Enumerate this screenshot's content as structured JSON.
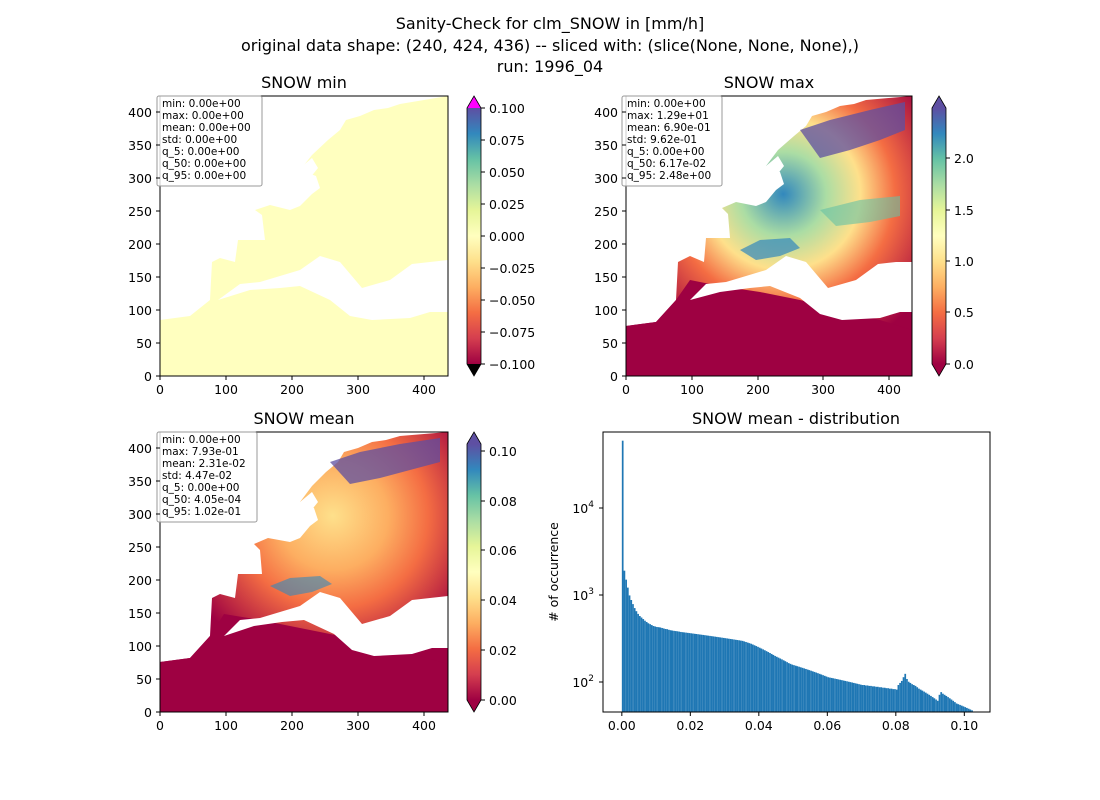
{
  "figure": {
    "title_lines": [
      "Sanity-Check for clm_SNOW in [mm/h]",
      "original data shape: (240, 424, 436) -- sliced with: (slice(None, None, None),)",
      "run: 1996_04"
    ]
  },
  "colors": {
    "land_yellow": "#ffffbf",
    "ocean_red": "#9e0142",
    "over_max": "#ff00ff",
    "under_min": "#000000",
    "hist_bar": "#1f77b4",
    "spectral_r": [
      "#9e0142",
      "#d53e4f",
      "#f46d43",
      "#fdae61",
      "#fee08b",
      "#ffffbf",
      "#e6f598",
      "#abdda4",
      "#66c2a5",
      "#3288bd",
      "#5e4fa2"
    ]
  },
  "chart_data": [
    {
      "type": "heatmap",
      "title": "SNOW min",
      "xlim": [
        0,
        436
      ],
      "ylim": [
        0,
        424
      ],
      "x_ticks": [
        "0",
        "100",
        "200",
        "300",
        "400"
      ],
      "y_ticks": [
        "0",
        "50",
        "100",
        "150",
        "200",
        "250",
        "300",
        "350",
        "400"
      ],
      "colorbar": {
        "vmin": -0.1,
        "vmax": 0.1,
        "ticks": [
          "0.100",
          "0.075",
          "0.050",
          "0.025",
          "0.000",
          "−0.025",
          "−0.050",
          "−0.075",
          "−0.100"
        ],
        "extend": "both"
      },
      "stats": [
        "min: 0.00e+00",
        "max: 0.00e+00",
        "mean: 0.00e+00",
        "std: 0.00e+00",
        "q_5: 0.00e+00",
        "q_50: 0.00e+00",
        "q_95: 0.00e+00"
      ]
    },
    {
      "type": "heatmap",
      "title": "SNOW max",
      "xlim": [
        0,
        436
      ],
      "ylim": [
        0,
        424
      ],
      "x_ticks": [
        "0",
        "100",
        "200",
        "300",
        "400"
      ],
      "y_ticks": [
        "0",
        "50",
        "100",
        "150",
        "200",
        "250",
        "300",
        "350",
        "400"
      ],
      "colorbar": {
        "vmin": 0,
        "vmax": 2.48,
        "ticks": [
          "2.0",
          "1.5",
          "1.0",
          "0.5",
          "0.0"
        ],
        "extend": "both"
      },
      "stats": [
        "min: 0.00e+00",
        "max: 1.29e+01",
        "mean: 6.90e-01",
        "std: 9.62e-01",
        "q_5: 0.00e+00",
        "q_50: 6.17e-02",
        "q_95: 2.48e+00"
      ]
    },
    {
      "type": "heatmap",
      "title": "SNOW mean",
      "xlim": [
        0,
        436
      ],
      "ylim": [
        0,
        424
      ],
      "x_ticks": [
        "0",
        "100",
        "200",
        "300",
        "400"
      ],
      "y_ticks": [
        "0",
        "50",
        "100",
        "150",
        "200",
        "250",
        "300",
        "350",
        "400"
      ],
      "colorbar": {
        "vmin": 0,
        "vmax": 0.102,
        "ticks": [
          "0.10",
          "0.08",
          "0.06",
          "0.04",
          "0.02",
          "0.00"
        ],
        "extend": "both"
      },
      "stats": [
        "min: 0.00e+00",
        "max: 7.93e-01",
        "mean: 2.31e-02",
        "std: 4.47e-02",
        "q_5: 0.00e+00",
        "q_50: 4.05e-04",
        "q_95: 1.02e-01"
      ]
    },
    {
      "type": "bar",
      "title": "SNOW mean - distribution",
      "ylabel": "# of occurrence",
      "yscale": "log",
      "xlim": [
        -0.0055,
        0.1075
      ],
      "ylim": [
        45,
        60000
      ],
      "x_ticks": [
        "0.00",
        "0.02",
        "0.04",
        "0.06",
        "0.08",
        "0.10"
      ],
      "y_ticks": [
        "10",
        "10",
        "10"
      ],
      "y_tick_exps": [
        "4",
        "3",
        "2"
      ],
      "bins": {
        "start": 0.0,
        "width": 0.0005
      },
      "values": [
        48000,
        1700,
        1350,
        1100,
        900,
        800,
        720,
        650,
        600,
        560,
        530,
        510,
        490,
        470,
        455,
        440,
        430,
        420,
        410,
        405,
        400,
        398,
        395,
        390,
        385,
        380,
        378,
        372,
        368,
        365,
        362,
        360,
        358,
        355,
        352,
        350,
        348,
        346,
        344,
        342,
        340,
        338,
        336,
        334,
        332,
        330,
        328,
        326,
        324,
        322,
        320,
        318,
        316,
        314,
        312,
        310,
        308,
        306,
        304,
        302,
        300,
        298,
        296,
        294,
        292,
        290,
        288,
        286,
        284,
        282,
        280,
        276,
        272,
        268,
        264,
        260,
        255,
        250,
        245,
        240,
        235,
        230,
        225,
        220,
        215,
        210,
        205,
        200,
        195,
        190,
        186,
        182,
        178,
        174,
        170,
        166,
        162,
        158,
        155,
        152,
        150,
        148,
        146,
        144,
        142,
        140,
        138,
        136,
        134,
        132,
        130,
        128,
        126,
        124,
        122,
        120,
        118,
        116,
        114,
        112,
        110,
        109,
        108,
        107,
        106,
        105,
        104,
        103,
        102,
        101,
        100,
        99,
        98,
        97,
        96,
        95,
        94,
        93,
        92,
        91,
        90,
        90,
        89,
        89,
        88,
        88,
        87,
        87,
        86,
        86,
        85,
        85,
        84,
        84,
        83,
        83,
        82,
        82,
        81,
        81,
        80,
        90,
        95,
        100,
        110,
        120,
        105,
        98,
        95,
        92,
        90,
        88,
        85,
        82,
        80,
        78,
        76,
        74,
        72,
        70,
        68,
        66,
        64,
        62,
        60,
        70,
        75,
        72,
        70,
        68,
        66,
        64,
        62,
        60,
        58,
        56,
        55,
        54,
        53,
        52,
        51,
        50,
        49,
        48,
        47
      ]
    }
  ]
}
